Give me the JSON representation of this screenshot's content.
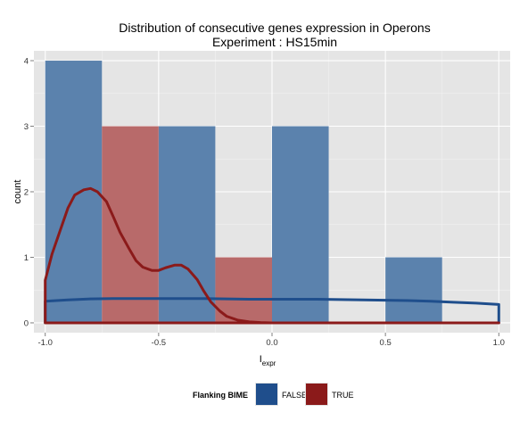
{
  "chart_data": {
    "type": "bar",
    "title": "Distribution of consecutive genes expression in Operons",
    "subtitle": "Experiment : HS15min",
    "xlabel": "I",
    "xlabel_sub": "expr",
    "ylabel": "count",
    "xlim": [
      -1.05,
      1.05
    ],
    "ylim": [
      -0.15,
      4.15
    ],
    "x_ticks": [
      -1.0,
      -0.5,
      0.0,
      0.5,
      1.0
    ],
    "x_tick_labels": [
      "-1.0",
      "-0.5",
      "0.0",
      "0.5",
      "1.0"
    ],
    "y_ticks": [
      0,
      1,
      2,
      3,
      4
    ],
    "y_tick_labels": [
      "0",
      "1",
      "2",
      "3",
      "4"
    ],
    "grid": true,
    "legend": {
      "title": "Flanking BIME",
      "position": "bottom",
      "entries": [
        {
          "label": "FALSE",
          "color": "#1f4e8c"
        },
        {
          "label": "TRUE",
          "color": "#8b1a1a"
        }
      ]
    },
    "series": [
      {
        "name": "FALSE",
        "kind": "histogram",
        "fill": "#5b82ad",
        "bins": [
          {
            "x0": -1.0,
            "x1": -0.75,
            "count": 4
          },
          {
            "x0": -0.75,
            "x1": -0.5,
            "count": 0
          },
          {
            "x0": -0.5,
            "x1": -0.25,
            "count": 3
          },
          {
            "x0": -0.25,
            "x1": 0.0,
            "count": 0
          },
          {
            "x0": 0.0,
            "x1": 0.25,
            "count": 3
          },
          {
            "x0": 0.25,
            "x1": 0.5,
            "count": 0
          },
          {
            "x0": 0.5,
            "x1": 0.75,
            "count": 1
          },
          {
            "x0": 0.75,
            "x1": 1.0,
            "count": 0
          }
        ]
      },
      {
        "name": "TRUE",
        "kind": "histogram",
        "fill": "#b86a6a",
        "bins": [
          {
            "x0": -1.0,
            "x1": -0.75,
            "count": 0
          },
          {
            "x0": -0.75,
            "x1": -0.5,
            "count": 3
          },
          {
            "x0": -0.5,
            "x1": -0.25,
            "count": 0
          },
          {
            "x0": -0.25,
            "x1": 0.0,
            "count": 1
          },
          {
            "x0": 0.0,
            "x1": 0.25,
            "count": 0
          },
          {
            "x0": 0.25,
            "x1": 0.5,
            "count": 0
          },
          {
            "x0": 0.5,
            "x1": 0.75,
            "count": 0
          },
          {
            "x0": 0.75,
            "x1": 1.0,
            "count": 0
          }
        ]
      },
      {
        "name": "FALSE",
        "kind": "density",
        "color": "#1f4e8c",
        "x": [
          -1.0,
          -0.9,
          -0.8,
          -0.7,
          -0.6,
          -0.5,
          -0.4,
          -0.3,
          -0.2,
          -0.1,
          0.0,
          0.1,
          0.2,
          0.3,
          0.4,
          0.5,
          0.6,
          0.7,
          0.8,
          0.9,
          1.0
        ],
        "y": [
          0.33,
          0.35,
          0.365,
          0.37,
          0.37,
          0.37,
          0.37,
          0.37,
          0.365,
          0.36,
          0.36,
          0.36,
          0.36,
          0.355,
          0.35,
          0.345,
          0.34,
          0.33,
          0.315,
          0.3,
          0.28
        ]
      },
      {
        "name": "TRUE",
        "kind": "density",
        "color": "#8b1a1a",
        "x": [
          -1.0,
          -0.97,
          -0.93,
          -0.9,
          -0.87,
          -0.83,
          -0.8,
          -0.77,
          -0.73,
          -0.7,
          -0.67,
          -0.63,
          -0.6,
          -0.57,
          -0.53,
          -0.5,
          -0.47,
          -0.43,
          -0.4,
          -0.37,
          -0.33,
          -0.3,
          -0.27,
          -0.23,
          -0.2,
          -0.15,
          -0.1,
          -0.05,
          0.0,
          0.1,
          0.2,
          0.4,
          0.6,
          0.8,
          1.0
        ],
        "y": [
          0.65,
          1.05,
          1.45,
          1.75,
          1.95,
          2.03,
          2.05,
          2.0,
          1.85,
          1.62,
          1.38,
          1.13,
          0.95,
          0.85,
          0.8,
          0.8,
          0.84,
          0.88,
          0.88,
          0.82,
          0.66,
          0.48,
          0.32,
          0.18,
          0.1,
          0.04,
          0.015,
          0.005,
          0.0,
          0.0,
          0.0,
          0.0,
          0.0,
          0.0,
          0.0
        ]
      }
    ]
  }
}
